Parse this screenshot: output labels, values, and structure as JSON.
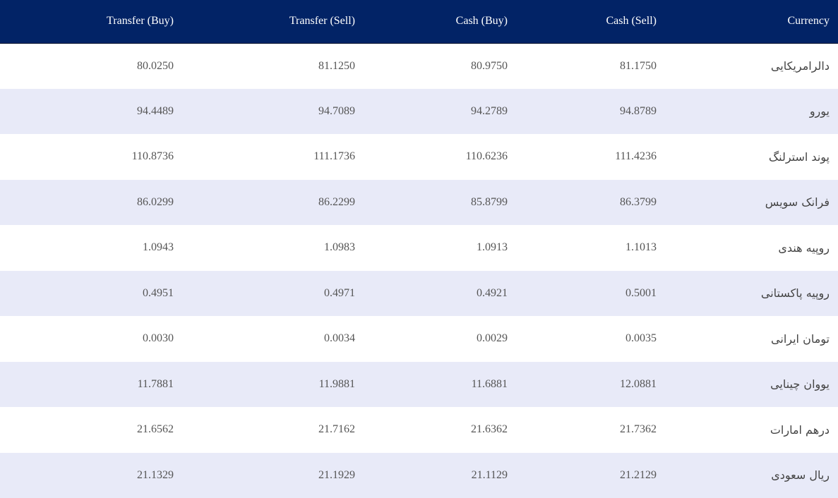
{
  "table": {
    "headers": {
      "transfer_buy": "Transfer (Buy)",
      "transfer_sell": "Transfer (Sell)",
      "cash_buy": "Cash (Buy)",
      "cash_sell": "Cash (Sell)",
      "currency": "Currency"
    },
    "rows": [
      {
        "currency": "دالرامریکایی",
        "cash_sell": "81.1750",
        "cash_buy": "80.9750",
        "transfer_sell": "81.1250",
        "transfer_buy": "80.0250"
      },
      {
        "currency": "یورو",
        "cash_sell": "94.8789",
        "cash_buy": "94.2789",
        "transfer_sell": "94.7089",
        "transfer_buy": "94.4489"
      },
      {
        "currency": "پوند استرلنگ",
        "cash_sell": "111.4236",
        "cash_buy": "110.6236",
        "transfer_sell": "111.1736",
        "transfer_buy": "110.8736"
      },
      {
        "currency": "فرانک سویس",
        "cash_sell": "86.3799",
        "cash_buy": "85.8799",
        "transfer_sell": "86.2299",
        "transfer_buy": "86.0299"
      },
      {
        "currency": "روپیه هندی",
        "cash_sell": "1.1013",
        "cash_buy": "1.0913",
        "transfer_sell": "1.0983",
        "transfer_buy": "1.0943"
      },
      {
        "currency": "روپیه پاکستانی",
        "cash_sell": "0.5001",
        "cash_buy": "0.4921",
        "transfer_sell": "0.4971",
        "transfer_buy": "0.4951"
      },
      {
        "currency": "تومان ایرانی",
        "cash_sell": "0.0035",
        "cash_buy": "0.0029",
        "transfer_sell": "0.0034",
        "transfer_buy": "0.0030"
      },
      {
        "currency": "یووان چینایی",
        "cash_sell": "12.0881",
        "cash_buy": "11.6881",
        "transfer_sell": "11.9881",
        "transfer_buy": "11.7881"
      },
      {
        "currency": "درهم امارات",
        "cash_sell": "21.7362",
        "cash_buy": "21.6362",
        "transfer_sell": "21.7162",
        "transfer_buy": "21.6562"
      },
      {
        "currency": "ریال سعودی",
        "cash_sell": "21.2129",
        "cash_buy": "21.1129",
        "transfer_sell": "21.1929",
        "transfer_buy": "21.1329"
      }
    ]
  },
  "colors": {
    "header_background": "#022366",
    "header_text": "#ffffff",
    "stripe_row": "#e8eaf8",
    "body_text": "#555555"
  }
}
